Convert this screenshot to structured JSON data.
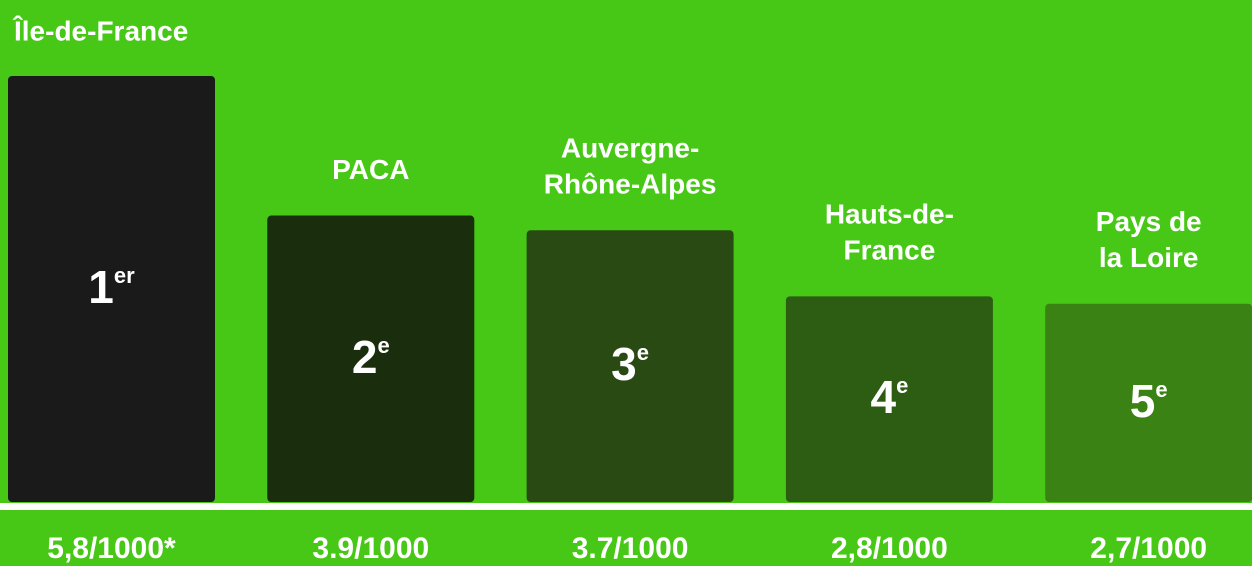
{
  "chart_data": {
    "type": "bar",
    "categories": [
      [
        "Île-de-France"
      ],
      [
        "PACA"
      ],
      [
        "Auvergne-",
        "Rhône-Alpes"
      ],
      [
        "Hauts-de-",
        "France"
      ],
      [
        "Pays de",
        "la Loire"
      ]
    ],
    "values": [
      5.8,
      3.9,
      3.7,
      2.8,
      2.7
    ],
    "value_labels": [
      "5,8/1000*",
      "3.9/1000",
      "3.7/1000",
      "2,8/1000",
      "2,7/1000"
    ],
    "ranks": [
      {
        "num": "1",
        "sup": "er"
      },
      {
        "num": "2",
        "sup": "e"
      },
      {
        "num": "3",
        "sup": "e"
      },
      {
        "num": "4",
        "sup": "e"
      },
      {
        "num": "5",
        "sup": "e"
      }
    ],
    "colors": [
      "#1a1a1a",
      "#1a2e0e",
      "#2a4a14",
      "#2c5d13",
      "#3a8214"
    ]
  }
}
